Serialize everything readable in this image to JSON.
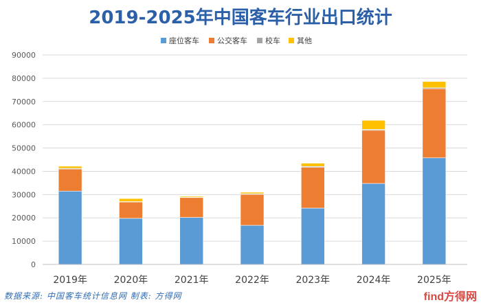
{
  "chart_data": {
    "type": "bar",
    "stacked": true,
    "title": "2019-2025年中国客车行业出口统计",
    "xlabel": "",
    "ylabel": "",
    "ylim": [
      0,
      90000
    ],
    "yticks": [
      0,
      10000,
      20000,
      30000,
      40000,
      50000,
      60000,
      70000,
      80000,
      90000
    ],
    "grid": true,
    "legend_position": "top-center",
    "categories": [
      "2019年",
      "2020年",
      "2021年",
      "2022年",
      "2023年",
      "2024年",
      "2025年"
    ],
    "series": [
      {
        "name": "座位客车",
        "color": "#5b9bd5",
        "values": [
          31500,
          19800,
          20200,
          16800,
          24200,
          34800,
          45800
        ]
      },
      {
        "name": "公交客车",
        "color": "#ed7d31",
        "values": [
          9500,
          7000,
          8500,
          13300,
          17500,
          22800,
          29700
        ]
      },
      {
        "name": "校车",
        "color": "#a5a5a5",
        "values": [
          300,
          200,
          200,
          300,
          400,
          400,
          400
        ]
      },
      {
        "name": "其他",
        "color": "#ffc000",
        "values": [
          900,
          1300,
          400,
          600,
          1400,
          3900,
          2700
        ]
      }
    ]
  },
  "footer": {
    "source": "数据来源: 中国客车统计信息网  制表: 方得网",
    "watermark": "find方得网"
  }
}
